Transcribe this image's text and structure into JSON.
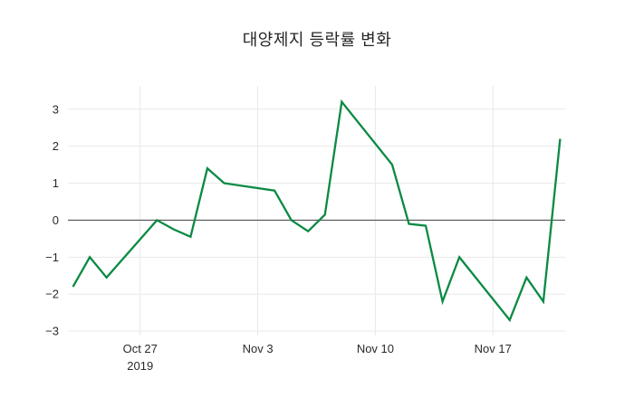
{
  "page": {
    "background_color": "#ffffff"
  },
  "chart": {
    "line_color": "#0b8a44",
    "grid_color": "#e9e9e9",
    "zero_line_color": "#3d3d3d",
    "tick_label_color": "#2a2a2f",
    "title_color": "#262626"
  },
  "chart_data": {
    "type": "line",
    "title": "대양제지 등락률 변화",
    "series_name": "등락률",
    "xlabel": "",
    "ylabel": "",
    "x": [
      "2019-10-23",
      "2019-10-24",
      "2019-10-25",
      "2019-10-28",
      "2019-10-29",
      "2019-10-30",
      "2019-10-31",
      "2019-11-01",
      "2019-11-04",
      "2019-11-05",
      "2019-11-06",
      "2019-11-07",
      "2019-11-08",
      "2019-11-11",
      "2019-11-12",
      "2019-11-13",
      "2019-11-14",
      "2019-11-15",
      "2019-11-18",
      "2019-11-19",
      "2019-11-20",
      "2019-11-21"
    ],
    "values": [
      -1.8,
      -1.0,
      -1.55,
      0.0,
      -0.25,
      -0.45,
      1.4,
      1.0,
      0.8,
      0.0,
      -0.3,
      0.15,
      3.2,
      1.5,
      -0.1,
      -0.15,
      -2.2,
      -1.0,
      -2.7,
      -1.55,
      -2.2,
      2.2
    ],
    "ylim": [
      -3.12,
      3.63
    ],
    "yticks": [
      3,
      2,
      1,
      0,
      -1,
      -2,
      -3
    ],
    "ytick_labels": [
      "3",
      "2",
      "1",
      "0",
      "−1",
      "−2",
      "−3"
    ],
    "xticks": [
      {
        "date": "2019-10-27",
        "label": "Oct 27",
        "sublabel": "2019"
      },
      {
        "date": "2019-11-03",
        "label": "Nov 3",
        "sublabel": ""
      },
      {
        "date": "2019-11-10",
        "label": "Nov 10",
        "sublabel": ""
      },
      {
        "date": "2019-11-17",
        "label": "Nov 17",
        "sublabel": ""
      }
    ],
    "grid": true,
    "legend": false
  }
}
